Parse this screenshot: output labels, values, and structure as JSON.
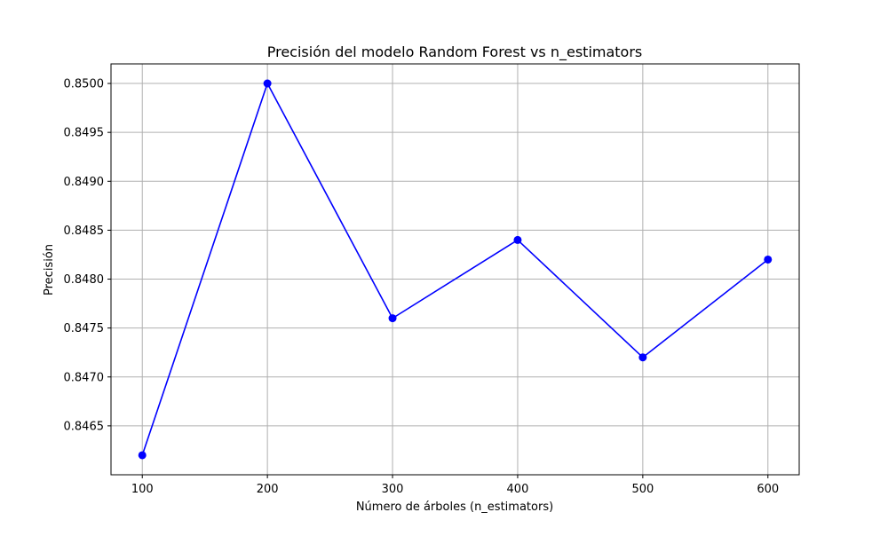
{
  "chart_data": {
    "type": "line",
    "title": "Precisión del modelo Random Forest vs n_estimators",
    "xlabel": "Número de árboles (n_estimators)",
    "ylabel": "Precisión",
    "x": [
      100,
      200,
      300,
      400,
      500,
      600
    ],
    "series": [
      {
        "values": [
          0.8462,
          0.85,
          0.8476,
          0.8484,
          0.8472,
          0.8482
        ],
        "color": "#0000ff",
        "marker": "circle"
      }
    ],
    "xticks": [
      "100",
      "200",
      "300",
      "400",
      "500",
      "600"
    ],
    "yticks": [
      "0.8465",
      "0.8470",
      "0.8475",
      "0.8480",
      "0.8485",
      "0.8490",
      "0.8495",
      "0.8500"
    ],
    "xlim": [
      75,
      625
    ],
    "ylim": [
      0.846,
      0.8502
    ],
    "grid": true
  }
}
